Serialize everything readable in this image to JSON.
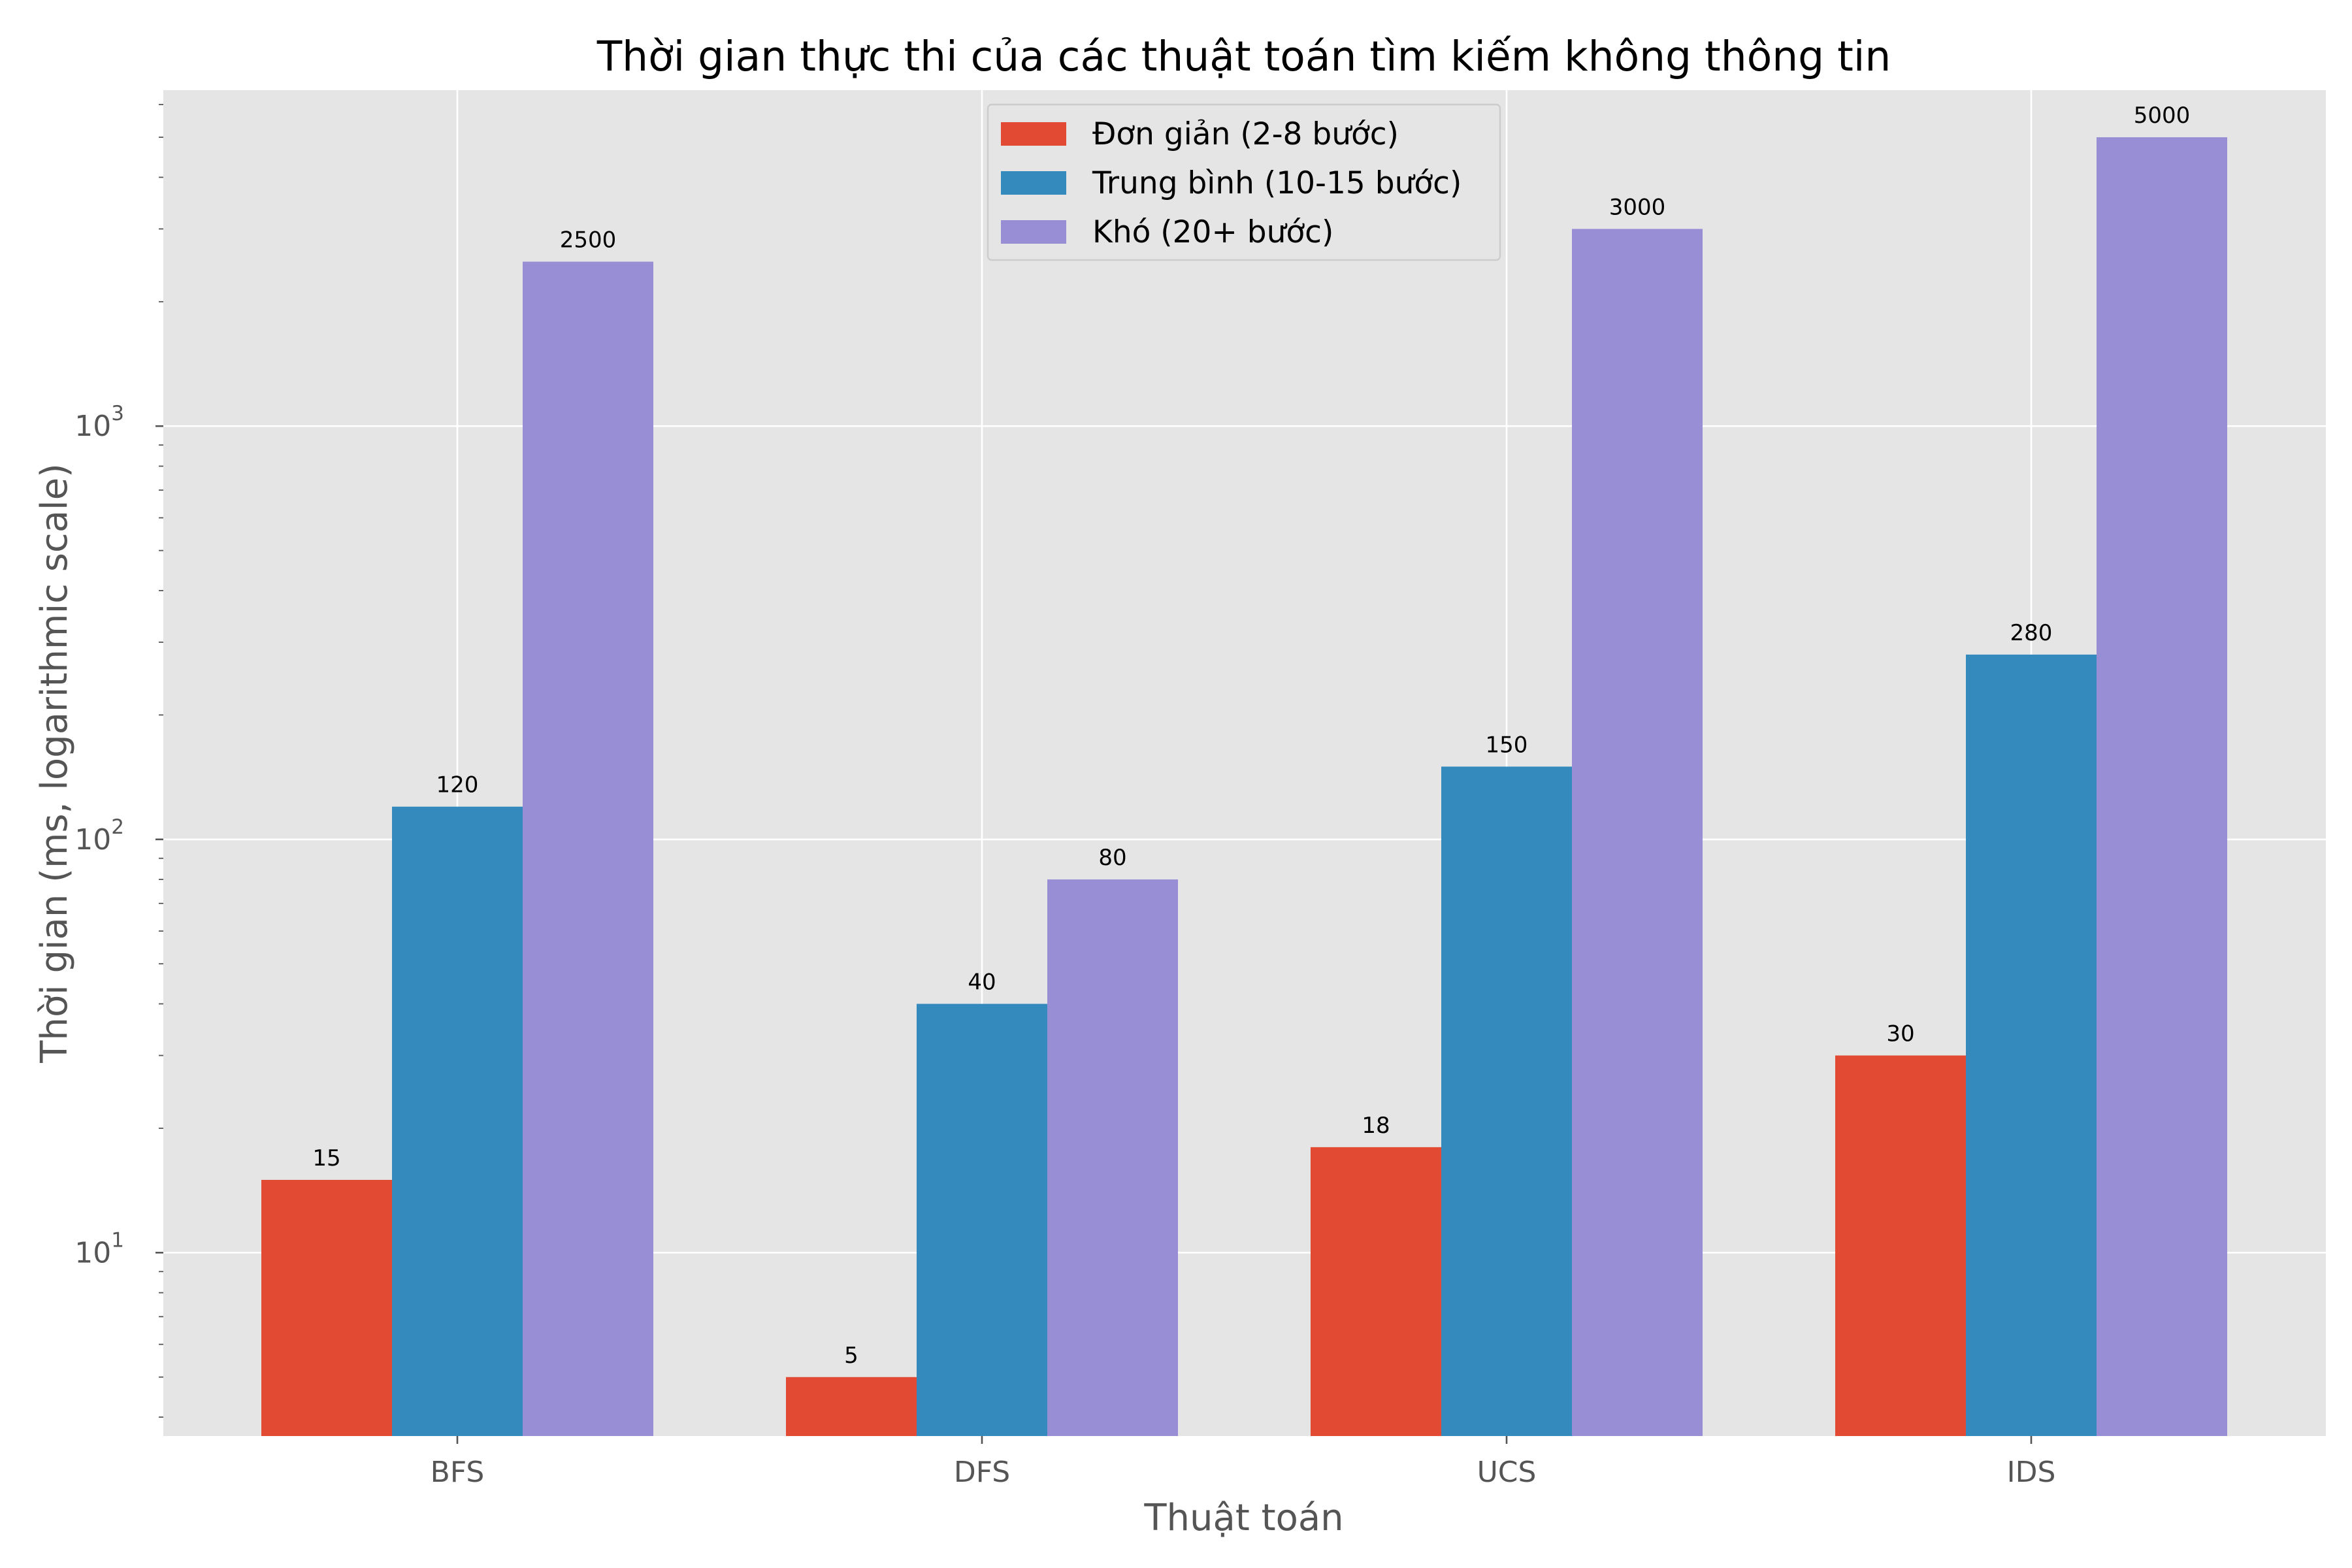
{
  "chart_data": {
    "type": "bar",
    "title": "Thời gian thực thi của các thuật toán tìm kiếm không thông tin",
    "xlabel": "Thuật toán",
    "ylabel": "Thời gian (ms, logarithmic scale)",
    "yscale": "log",
    "ylim": [
      3.6,
      6500
    ],
    "yticks": [
      {
        "value": 10,
        "base": "10",
        "exp": "1"
      },
      {
        "value": 100,
        "base": "10",
        "exp": "2"
      },
      {
        "value": 1000,
        "base": "10",
        "exp": "3"
      }
    ],
    "categories": [
      "BFS",
      "DFS",
      "UCS",
      "IDS"
    ],
    "series": [
      {
        "name": "Đơn giản (2-8 bước)",
        "color": "#E24A33",
        "values": [
          15,
          5,
          18,
          30
        ],
        "labels": [
          "15",
          "5",
          "18",
          "30"
        ]
      },
      {
        "name": "Trung bình (10-15 bước)",
        "color": "#348ABD",
        "values": [
          120,
          40,
          150,
          280
        ],
        "labels": [
          "120",
          "40",
          "150",
          "280"
        ]
      },
      {
        "name": "Khó (20+ bước)",
        "color": "#988ED5",
        "values": [
          2500,
          80,
          3000,
          5000
        ],
        "labels": [
          "2500",
          "80",
          "3000",
          "5000"
        ]
      }
    ],
    "grid": true,
    "legend_position": "top-center",
    "background_color": "#E5E5E5"
  }
}
